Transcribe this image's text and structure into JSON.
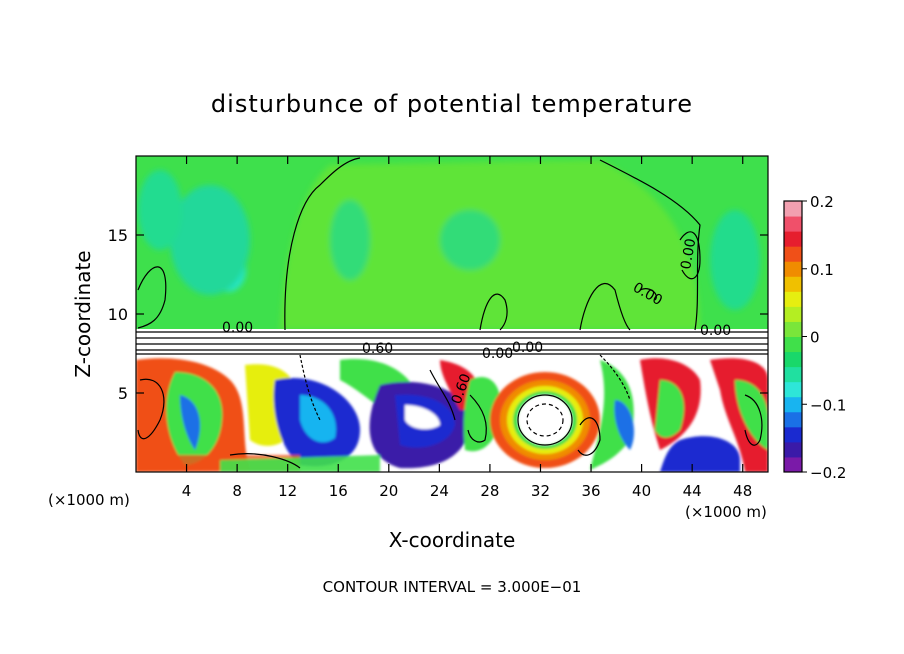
{
  "chart_data": {
    "type": "heatmap",
    "title": "disturbunce of potential temperature",
    "xlabel": "X-coordinate",
    "ylabel": "Z-coordinate",
    "x_unit": "(×1000 m)",
    "x_ticks": [
      4,
      8,
      12,
      16,
      20,
      24,
      28,
      32,
      36,
      40,
      44,
      48
    ],
    "y_ticks": [
      5,
      10,
      15
    ],
    "xlim": [
      0,
      50
    ],
    "ylim": [
      0,
      20
    ],
    "colorbar": {
      "min": -0.2,
      "max": 0.2,
      "ticks": [
        0.2,
        0.1,
        0,
        -0.1,
        -0.2
      ],
      "tick_labels": [
        "0.2",
        "0.1",
        "0",
        "−0.1",
        "−0.2"
      ],
      "colors": [
        "#7a1aa8",
        "#3a1aa8",
        "#1a2ad0",
        "#1a70e6",
        "#18b4f0",
        "#2ee6d8",
        "#20e0a0",
        "#19d86a",
        "#40e04a",
        "#7ae63a",
        "#b4ee22",
        "#e6ee10",
        "#f0c000",
        "#f08c00",
        "#f05018",
        "#e61e2e",
        "#f0506a",
        "#f2a0b0"
      ]
    },
    "contour_labels": [
      "0.00",
      "0.60",
      "0.00",
      "0.00",
      "0.60",
      "0.00",
      "0.00",
      "0.00"
    ],
    "footnote": "CONTOUR INTERVAL = 3.000E−01"
  }
}
